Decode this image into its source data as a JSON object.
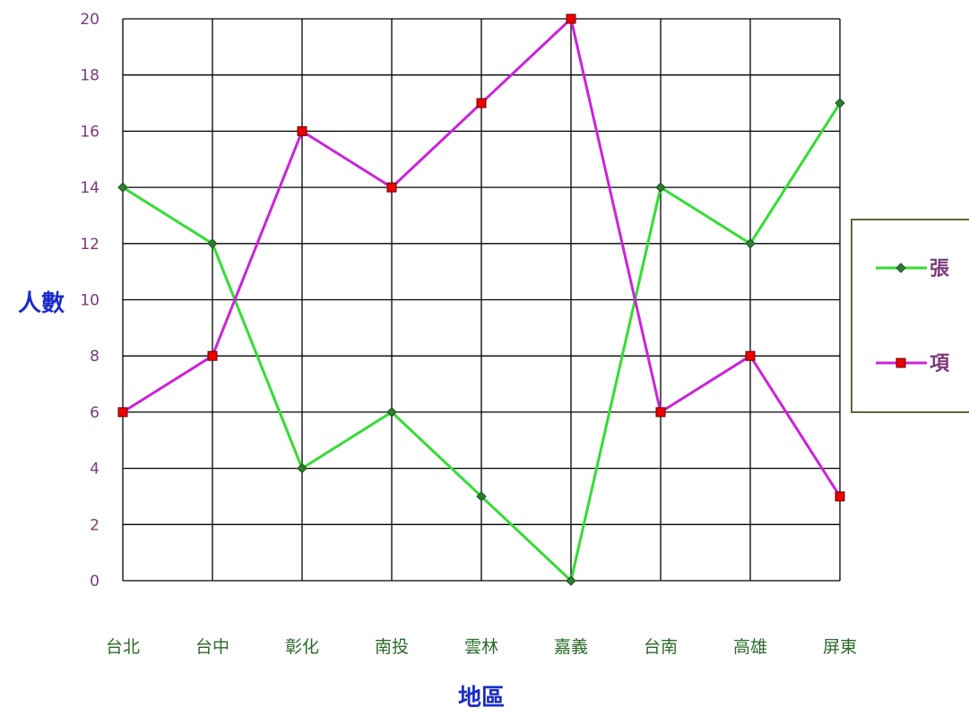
{
  "chart_data": {
    "type": "line",
    "categories": [
      "台北",
      "台中",
      "彰化",
      "南投",
      "雲林",
      "嘉義",
      "台南",
      "高雄",
      "屏東"
    ],
    "series": [
      {
        "name": "張",
        "values": [
          14,
          12,
          4,
          6,
          3,
          0,
          14,
          12,
          17
        ],
        "color": "#33dd33",
        "marker": "diamond",
        "marker_color": "#2e7d32"
      },
      {
        "name": "項",
        "values": [
          6,
          8,
          16,
          14,
          17,
          20,
          6,
          8,
          3
        ],
        "color": "#cc22dd",
        "marker": "square",
        "marker_color": "#ee0000"
      }
    ],
    "ylim": [
      0,
      20
    ],
    "yticks": [
      "0",
      "2",
      "4",
      "6",
      "8",
      "10",
      "12",
      "14",
      "16",
      "18",
      "20"
    ],
    "ylabel": "人數",
    "xlabel": "地區",
    "grid": true,
    "legend_position": "right",
    "colors": {
      "ytick_text": "#7b3a78",
      "xtick_text": "#2b6a2b",
      "axis_title": "#1a2bcc",
      "legend_text": "#7b3a78",
      "grid": "#000000",
      "legend_border": "#666633"
    }
  }
}
